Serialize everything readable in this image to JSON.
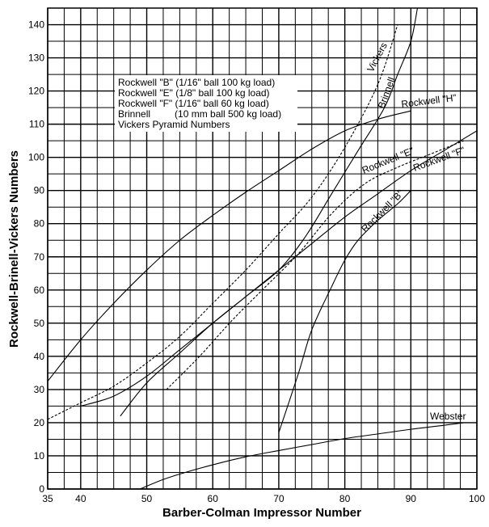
{
  "chart_data": {
    "type": "line",
    "title": "",
    "xlabel": "Barber-Colman Impressor Number",
    "ylabel": "Rockwell-Brinell-Vickers Numbers",
    "xlim": [
      35,
      100
    ],
    "ylim": [
      0,
      145
    ],
    "x_ticks": [
      "35",
      "40",
      "50",
      "60",
      "70",
      "80",
      "90",
      "100"
    ],
    "y_ticks": [
      "0",
      "10",
      "20",
      "30",
      "40",
      "50",
      "60",
      "70",
      "80",
      "90",
      "100",
      "110",
      "120",
      "130",
      "140"
    ],
    "grid": true,
    "legend": {
      "placement": "top-left",
      "entries": [
        "Rockwell \"B\" (1/16\" ball 100 kg load)",
        "Rockwell \"E\" (1/8\" ball 100 kg load)",
        "Rockwell \"F\" (1/16\" ball 60 kg load)",
        "Brinnell         (10 mm ball 500 kg load)",
        "Vickers Pyramid Numbers"
      ]
    },
    "series": [
      {
        "name": "Rockwell \"H\"",
        "style": "solid",
        "x": [
          35,
          40,
          45,
          50,
          55,
          60,
          65,
          70,
          75,
          80,
          85,
          90
        ],
        "y": [
          32.5,
          45,
          56,
          66,
          75,
          82.5,
          89.5,
          96,
          102.5,
          108,
          111.5,
          114
        ]
      },
      {
        "name": "Rockwell \"E\"",
        "style": "solid",
        "x": [
          40,
          45,
          50,
          55,
          60,
          65,
          70,
          75,
          80,
          85,
          90,
          95,
          100
        ],
        "y": [
          25,
          28,
          34,
          42,
          50,
          58,
          66,
          74,
          82,
          89,
          96,
          102,
          108
        ]
      },
      {
        "name": "Rockwell \"F\"",
        "style": "dashed",
        "x": [
          53,
          58,
          63,
          68,
          73,
          78,
          83,
          88,
          93,
          98
        ],
        "y": [
          30,
          40,
          51,
          61,
          71,
          83,
          92,
          97,
          101,
          105
        ]
      },
      {
        "name": "Rockwell \"B\"",
        "style": "solid",
        "x": [
          70,
          73,
          75,
          78,
          80,
          82,
          85,
          88,
          90
        ],
        "y": [
          17,
          35,
          48,
          61,
          69,
          75,
          81,
          86,
          90
        ]
      },
      {
        "name": "Brinnell",
        "style": "solid",
        "x": [
          46,
          50,
          55,
          60,
          65,
          70,
          74,
          78,
          82,
          86,
          88,
          90,
          91
        ],
        "y": [
          22,
          32,
          41,
          50,
          58,
          66,
          76,
          89,
          102,
          115,
          125,
          135,
          145
        ]
      },
      {
        "name": "Vickers",
        "style": "dashed",
        "x": [
          35,
          40,
          45,
          50,
          55,
          60,
          65,
          70,
          75,
          80,
          85,
          88
        ],
        "y": [
          21,
          26,
          31,
          38,
          46,
          56,
          66,
          77,
          88,
          103,
          122,
          140
        ]
      },
      {
        "name": "Webster",
        "style": "solid",
        "x": [
          49,
          52,
          55,
          60,
          65,
          70,
          75,
          80,
          85,
          90,
          95,
          98
        ],
        "y": [
          0,
          2.5,
          4.5,
          7.3,
          9.7,
          11.6,
          13.4,
          15.2,
          16.6,
          18,
          19.2,
          20
        ]
      }
    ]
  }
}
